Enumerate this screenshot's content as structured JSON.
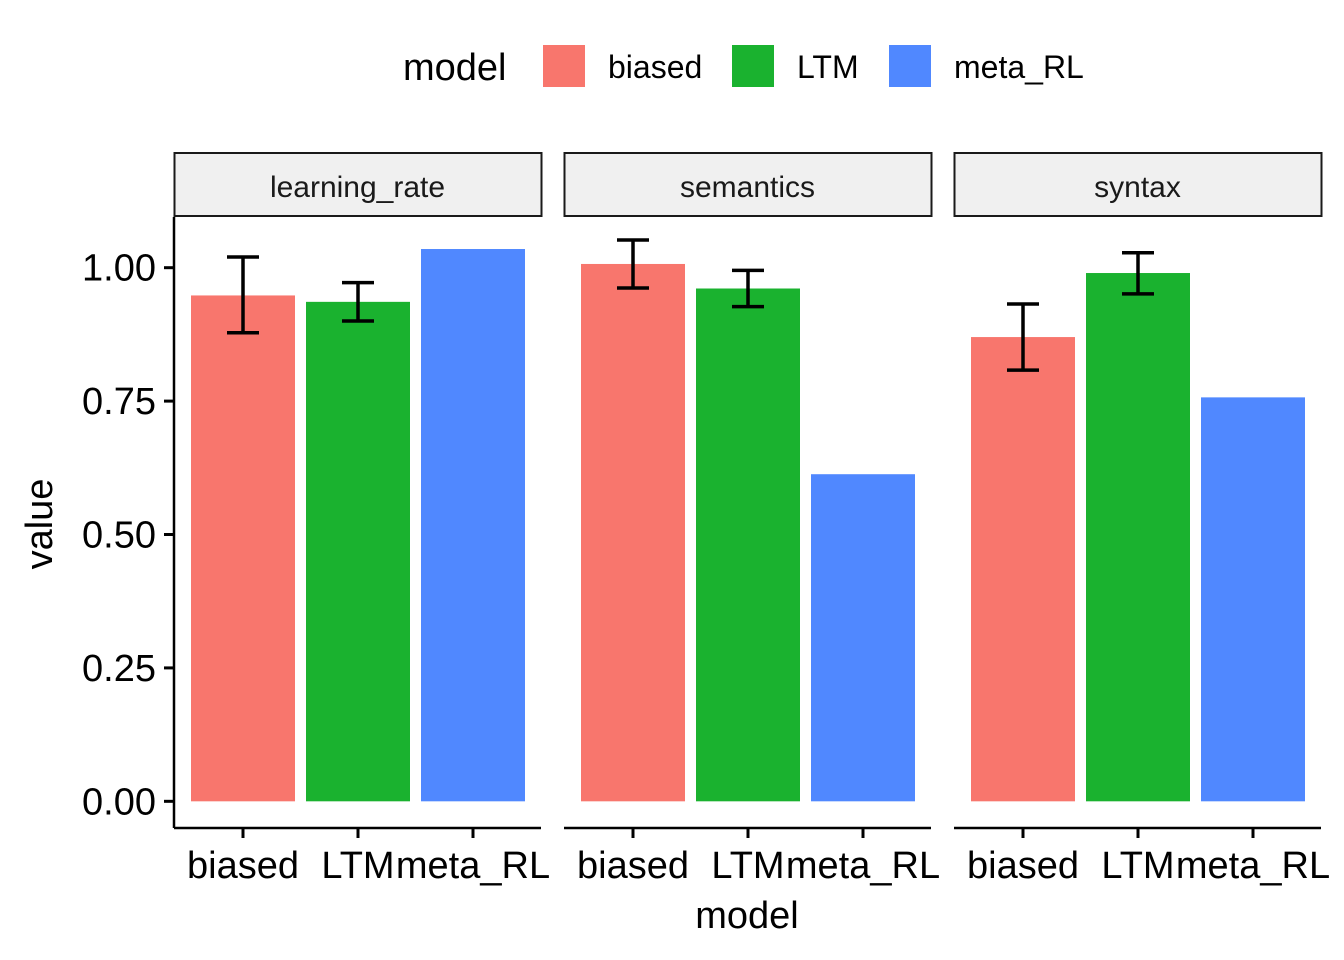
{
  "chart_data": {
    "type": "bar",
    "facets": [
      "learning_rate",
      "semantics",
      "syntax"
    ],
    "categories": [
      "biased",
      "LTM",
      "meta_RL"
    ],
    "colors": {
      "biased": "#F8766D",
      "LTM": "#1AB22F",
      "meta_RL": "#5088FF"
    },
    "series": [
      {
        "facet": "learning_rate",
        "values": [
          0.948,
          0.936,
          1.035
        ],
        "err_low": [
          0.878,
          0.9,
          null
        ],
        "err_high": [
          1.02,
          0.972,
          null
        ]
      },
      {
        "facet": "semantics",
        "values": [
          1.007,
          0.961,
          0.613
        ],
        "err_low": [
          0.962,
          0.927,
          null
        ],
        "err_high": [
          1.052,
          0.995,
          null
        ]
      },
      {
        "facet": "syntax",
        "values": [
          0.87,
          0.99,
          0.757
        ],
        "err_low": [
          0.808,
          0.951,
          null
        ],
        "err_high": [
          0.932,
          1.028,
          null
        ]
      }
    ],
    "xlabel": "model",
    "ylabel": "value",
    "ylim": [
      -0.05,
      1.095
    ],
    "yticks": [
      "0.00",
      "0.25",
      "0.50",
      "0.75",
      "1.00"
    ],
    "ytick_values": [
      0,
      0.25,
      0.5,
      0.75,
      1.0
    ],
    "legend": {
      "title": "model",
      "position": "top",
      "items": [
        "biased",
        "LTM",
        "meta_RL"
      ]
    },
    "grid": false
  }
}
